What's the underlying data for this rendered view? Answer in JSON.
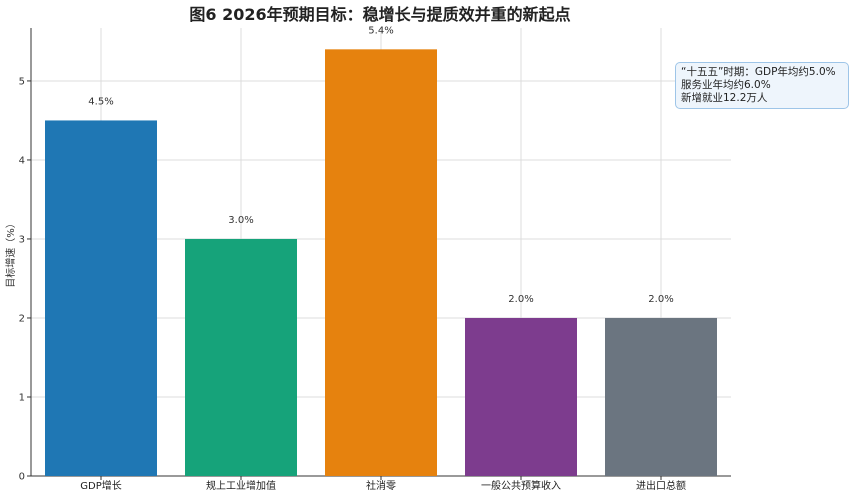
{
  "chart_data": {
    "type": "bar",
    "title": "图6  2026年预期目标：稳增长与提质效并重的新起点",
    "ylabel": "目标增速（%）",
    "xlabel": "",
    "categories": [
      "GDP增长",
      "规上工业增加值",
      "社消零",
      "一般公共预算收入",
      "进出口总额"
    ],
    "values": [
      4.5,
      3.0,
      5.4,
      2.0,
      2.0
    ],
    "data_labels": [
      "4.5%",
      "3.0%",
      "5.4%",
      "2.0%",
      "2.0%"
    ],
    "colors": [
      "#1f77b4",
      "#16a37a",
      "#e6820e",
      "#7d3c8e",
      "#6b7580"
    ],
    "ylim": [
      0,
      5.67
    ],
    "yticks": [
      "0",
      "1",
      "2",
      "3",
      "4",
      "5"
    ],
    "grid": true,
    "annotation": {
      "lines": [
        "“十五五”时期：GDP年均约5.0%",
        "服务业年均约6.0%",
        "新增就业12.2万人"
      ],
      "position": "top-right"
    }
  }
}
